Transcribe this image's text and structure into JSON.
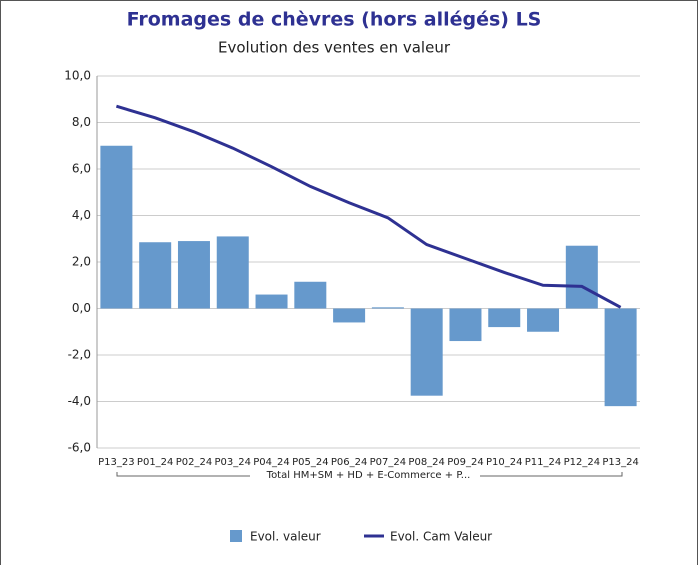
{
  "chart_data": {
    "type": "bar_line",
    "title": "Fromages de chèvres (hors allégés) LS",
    "subtitle": "Evolution des ventes en valeur",
    "group_label": "Total HM+SM + HD + E-Commerce + P...",
    "categories": [
      "P13_23",
      "P01_24",
      "P02_24",
      "P03_24",
      "P04_24",
      "P05_24",
      "P06_24",
      "P07_24",
      "P08_24",
      "P09_24",
      "P10_24",
      "P11_24",
      "P12_24",
      "P13_24"
    ],
    "series": [
      {
        "name": "Evol.  valeur",
        "type": "bar",
        "color": "#6699cc",
        "values": [
          7.0,
          2.85,
          2.9,
          3.1,
          0.6,
          1.15,
          -0.6,
          0.05,
          -3.75,
          -1.4,
          -0.8,
          -1.0,
          2.7,
          -4.2
        ]
      },
      {
        "name": "Evol. Cam Valeur",
        "type": "line",
        "color": "#2e3192",
        "values": [
          8.7,
          8.2,
          7.6,
          6.9,
          6.1,
          5.25,
          4.55,
          3.9,
          2.75,
          2.15,
          1.55,
          1.0,
          0.95,
          0.05
        ]
      }
    ],
    "ylim": [
      -6,
      10
    ],
    "yticks": [
      {
        "value": -6,
        "label": "-6,0"
      },
      {
        "value": -4,
        "label": "-4,0"
      },
      {
        "value": -2,
        "label": "-2,0"
      },
      {
        "value": 0,
        "label": "0,0"
      },
      {
        "value": 2,
        "label": "2,0"
      },
      {
        "value": 4,
        "label": "4,0"
      },
      {
        "value": 6,
        "label": "6,0"
      },
      {
        "value": 8,
        "label": "8,0"
      },
      {
        "value": 10,
        "label": "10,0"
      }
    ],
    "grid": true
  }
}
